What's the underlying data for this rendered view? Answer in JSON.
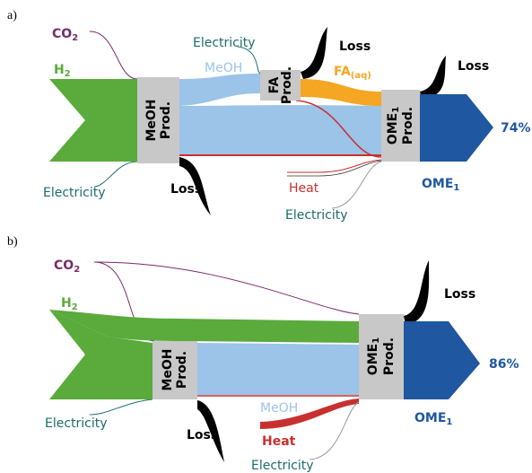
{
  "panels": [
    {
      "label": "a)",
      "co2": {
        "text": "CO",
        "sub": "2"
      },
      "h2": {
        "text": "H",
        "sub": "2"
      },
      "electricity_in": "Electricity",
      "meoh_prod": [
        "MeOH",
        "Prod."
      ],
      "electricity_fa": "Electricity",
      "meoh": "MeOH",
      "fa_prod": [
        "FA",
        "Prod."
      ],
      "loss_fa": "Loss",
      "fa_aq": {
        "text": "FA",
        "sub": "(aq)"
      },
      "loss_ome": "Loss",
      "ome_prod": {
        "text": "OME",
        "sub": "1",
        "line2": "Prod."
      },
      "share": "74%",
      "ome": {
        "text": "OME",
        "sub": "1"
      },
      "loss_meoh": "Loss",
      "heat": "Heat",
      "electricity_ome": "Electricity"
    },
    {
      "label": "b)",
      "co2": {
        "text": "CO",
        "sub": "2"
      },
      "h2": {
        "text": "H",
        "sub": "2"
      },
      "electricity_in": "Electricity",
      "meoh_prod": [
        "MeOH",
        "Prod."
      ],
      "meoh": "MeOH",
      "loss_ome": "Loss",
      "ome_prod": {
        "text": "OME",
        "sub": "1",
        "line2": "Prod."
      },
      "share": "86%",
      "ome": {
        "text": "OME",
        "sub": "1"
      },
      "loss_meoh": "Loss",
      "heat": "Heat",
      "electricity_ome": "Electricity"
    }
  ]
}
